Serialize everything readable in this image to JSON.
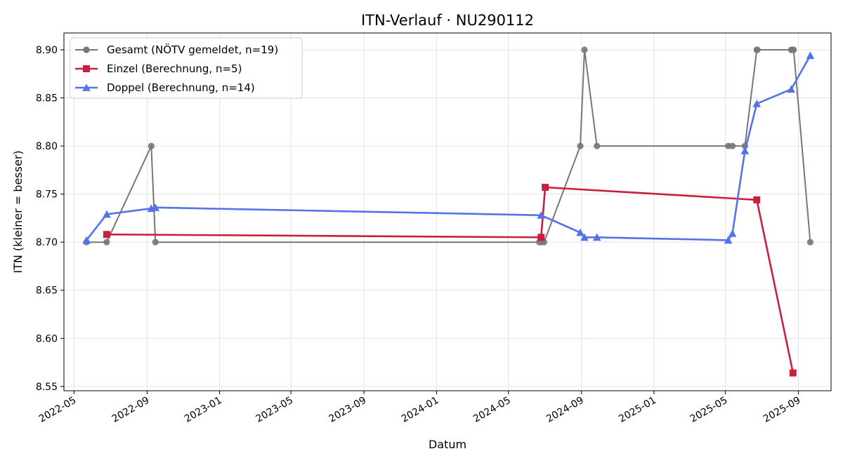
{
  "chart_data": {
    "type": "line",
    "title": "ITN-Verlauf · NU290112",
    "xlabel": "Datum",
    "ylabel": "ITN  (kleiner = besser)",
    "xlim": [
      "2022-04-14",
      "2025-10-26"
    ],
    "ylim": [
      8.5455,
      8.9175
    ],
    "grid": true,
    "legend_position": "top-left",
    "x_ticks": [
      "2022-05",
      "2022-09",
      "2023-01",
      "2023-05",
      "2023-09",
      "2024-01",
      "2024-05",
      "2024-09",
      "2025-01",
      "2025-05",
      "2025-09"
    ],
    "y_ticks": [
      8.55,
      8.6,
      8.65,
      8.7,
      8.75,
      8.8,
      8.85,
      8.9
    ],
    "y_tick_labels": [
      "8.55",
      "8.60",
      "8.65",
      "8.70",
      "8.75",
      "8.80",
      "8.85",
      "8.90"
    ],
    "series": [
      {
        "name": "Gesamt (NÖTV gemeldet, n=19)",
        "color": "#777777",
        "marker": "circle",
        "points": [
          [
            "2022-05-22",
            8.7
          ],
          [
            "2022-06-25",
            8.7
          ],
          [
            "2022-09-08",
            8.8
          ],
          [
            "2022-09-15",
            8.7
          ],
          [
            "2024-06-22",
            8.7
          ],
          [
            "2024-06-25",
            8.7
          ],
          [
            "2024-06-30",
            8.7
          ],
          [
            "2024-08-30",
            8.8
          ],
          [
            "2024-09-06",
            8.9
          ],
          [
            "2024-09-27",
            8.8
          ],
          [
            "2025-05-06",
            8.8
          ],
          [
            "2025-05-13",
            8.8
          ],
          [
            "2025-06-03",
            8.8
          ],
          [
            "2025-06-23",
            8.9
          ],
          [
            "2025-06-24",
            8.9
          ],
          [
            "2025-08-20",
            8.9
          ],
          [
            "2025-08-22",
            8.9
          ],
          [
            "2025-08-24",
            8.9
          ],
          [
            "2025-09-21",
            8.7
          ]
        ]
      },
      {
        "name": "Einzel (Berechnung, n=5)",
        "color": "#c8203c",
        "marker": "square",
        "points": [
          [
            "2022-06-25",
            8.708
          ],
          [
            "2024-06-25",
            8.705
          ],
          [
            "2024-07-02",
            8.757
          ],
          [
            "2025-06-23",
            8.744
          ],
          [
            "2025-08-23",
            8.564
          ]
        ]
      },
      {
        "name": "Doppel (Berechnung, n=14)",
        "color": "#5573e8",
        "marker": "triangle",
        "points": [
          [
            "2022-05-22",
            8.702
          ],
          [
            "2022-06-25",
            8.729
          ],
          [
            "2022-09-08",
            8.735
          ],
          [
            "2022-09-15",
            8.736
          ],
          [
            "2024-06-25",
            8.728
          ],
          [
            "2024-08-30",
            8.71
          ],
          [
            "2024-09-06",
            8.705
          ],
          [
            "2024-09-27",
            8.705
          ],
          [
            "2025-05-06",
            8.702
          ],
          [
            "2025-05-13",
            8.709
          ],
          [
            "2025-06-03",
            8.795
          ],
          [
            "2025-06-23",
            8.844
          ],
          [
            "2025-08-20",
            8.859
          ],
          [
            "2025-09-21",
            8.894
          ]
        ]
      }
    ]
  }
}
